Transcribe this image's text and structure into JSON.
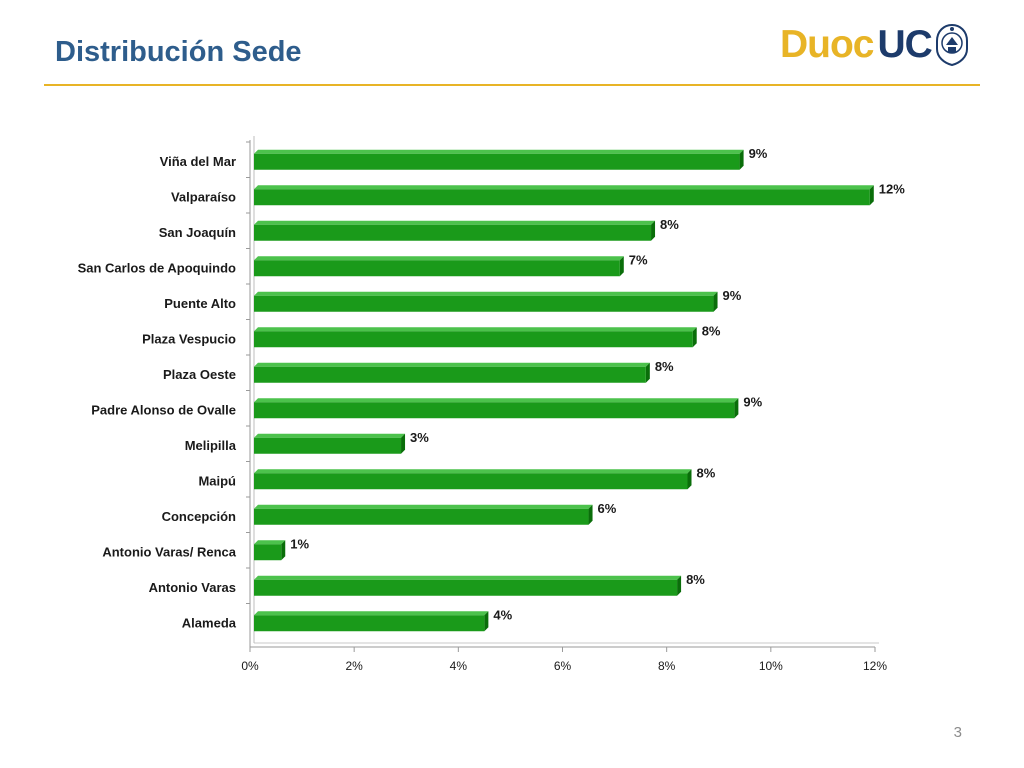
{
  "slide": {
    "title": "Distribución Sede",
    "page_number": "3",
    "logo": {
      "part1": "Duoc",
      "part2": "UC",
      "emblem": "university-seal-icon"
    }
  },
  "colors": {
    "title": "#2e5d8c",
    "rule": "#e8b426",
    "bar_front": "#1a9a1a",
    "bar_top": "#4cc24c",
    "bar_side": "#0a6e0a"
  },
  "chart_data": {
    "type": "bar",
    "orientation": "horizontal",
    "categories": [
      "Viña del Mar",
      "Valparaíso",
      "San Joaquín",
      "San Carlos de Apoquindo",
      "Puente Alto",
      "Plaza Vespucio",
      "Plaza Oeste",
      "Padre Alonso de Ovalle",
      "Melipilla",
      "Maipú",
      "Concepción",
      "Antonio Varas/ Renca",
      "Antonio Varas",
      "Alameda"
    ],
    "values": [
      9.4,
      11.9,
      7.7,
      7.1,
      8.9,
      8.5,
      7.6,
      9.3,
      2.9,
      8.4,
      6.5,
      0.6,
      8.2,
      4.5
    ],
    "value_labels": [
      "9%",
      "12%",
      "8%",
      "7%",
      "9%",
      "8%",
      "8%",
      "9%",
      "3%",
      "8%",
      "6%",
      "1%",
      "8%",
      "4%"
    ],
    "xticks": [
      "0%",
      "2%",
      "4%",
      "6%",
      "8%",
      "10%",
      "12%"
    ],
    "xlim": [
      0,
      12
    ],
    "grid": false,
    "legend": "none"
  }
}
